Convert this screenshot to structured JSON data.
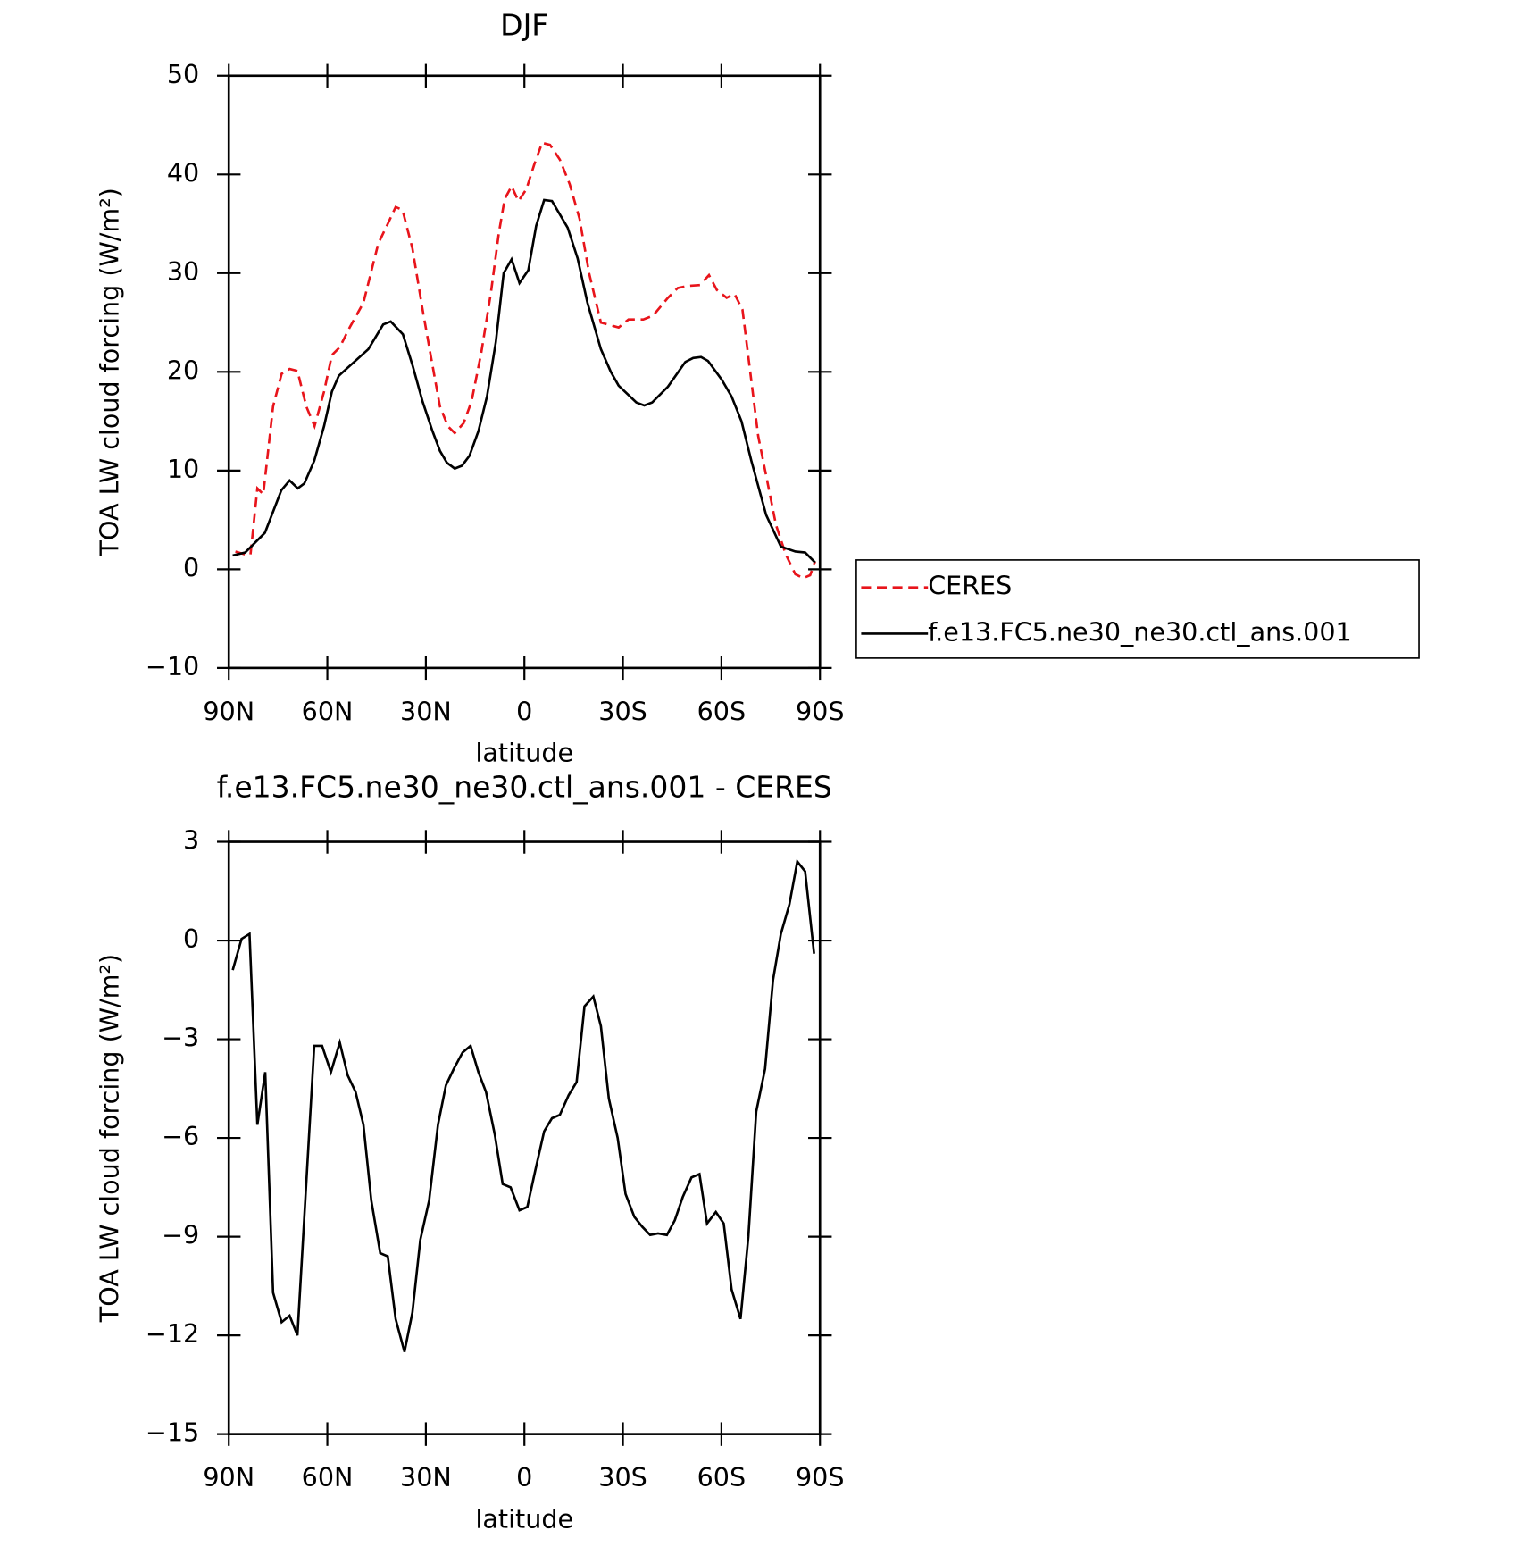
{
  "chart_data": [
    {
      "type": "line",
      "title": "DJF",
      "xlabel": "latitude",
      "ylabel": "TOA LW cloud forcing (W/m²)",
      "xlim": [
        90,
        -90
      ],
      "xticks": [
        {
          "value": 90,
          "label": "90N"
        },
        {
          "value": 60,
          "label": "60N"
        },
        {
          "value": 30,
          "label": "30N"
        },
        0,
        {
          "value": -30,
          "label": "30S"
        },
        {
          "value": -60,
          "label": "60S"
        },
        {
          "value": -90,
          "label": "90S"
        }
      ],
      "ylim": [
        -10,
        50
      ],
      "yticks": [
        -10,
        0,
        10,
        20,
        30,
        40,
        50
      ],
      "legend": "right",
      "series": [
        {
          "name": "CERES",
          "color": "#e8141b",
          "linestyle": "dashed",
          "x": [
            88,
            85,
            83.4,
            81.3,
            79.5,
            76.5,
            73.9,
            71.5,
            69.1,
            66.4,
            63.9,
            61,
            58.6,
            56.2,
            53.2,
            49,
            44.5,
            41.6,
            39.2,
            37.1,
            34.1,
            31.1,
            28.7,
            25.7,
            23.3,
            21.2,
            18.5,
            16.1,
            13.1,
            10.2,
            7.8,
            6,
            3.9,
            1.8,
            -0.6,
            -3,
            -5.4,
            -7.8,
            -10.8,
            -13.8,
            -16.8,
            -19.7,
            -23.3,
            -28.7,
            -31.7,
            -36.2,
            -39.2,
            -43.7,
            -46.7,
            -49.6,
            -53.5,
            -56.2,
            -58.6,
            -61.6,
            -64,
            -66.4,
            -68.2,
            -71.2,
            -74.2,
            -76.6,
            -79.6,
            -82.5,
            -84.9,
            -87,
            -88.5
          ],
          "values": [
            1.8,
            1.5,
            1.5,
            8.2,
            7.6,
            16.5,
            19.8,
            20.3,
            20.1,
            16.5,
            14.5,
            18,
            21.7,
            22.5,
            24.5,
            27,
            33,
            35,
            36.7,
            36.4,
            32.5,
            26.5,
            22,
            16.5,
            14.5,
            13.8,
            14.8,
            17,
            22,
            28,
            34,
            37.5,
            38.8,
            37.3,
            38.5,
            41,
            43.2,
            43,
            41.5,
            39,
            35.5,
            30,
            25,
            24.5,
            25.3,
            25.3,
            25.7,
            27.5,
            28.5,
            28.7,
            28.8,
            29.8,
            28.3,
            27.5,
            27.9,
            26.3,
            21.5,
            13.5,
            8.5,
            4.5,
            1.5,
            -0.5,
            -0.9,
            -0.6,
            0.8
          ]
        },
        {
          "name": "f.e13.FC5.ne30_ne30.ctl_ans.001",
          "color": "#000000",
          "linestyle": "solid",
          "x": [
            88.8,
            85,
            79,
            74,
            71.5,
            69,
            67,
            64,
            61,
            58.6,
            56.5,
            47.5,
            43,
            40.7,
            37,
            34,
            31,
            28,
            25.7,
            23.6,
            21.2,
            19,
            16.7,
            14,
            11.4,
            8.7,
            6.3,
            3.9,
            1.5,
            -1.2,
            -3.6,
            -6,
            -8.4,
            -13.2,
            -16.2,
            -19.2,
            -23.3,
            -26.3,
            -28.7,
            -34.1,
            -36.5,
            -38.9,
            -43.7,
            -49,
            -51.4,
            -53.8,
            -55.9,
            -60.1,
            -63.1,
            -66.1,
            -69.1,
            -73.6,
            -78.1,
            -82.5,
            -85.5,
            -88.5
          ],
          "values": [
            1.4,
            1.7,
            3.7,
            8,
            9,
            8.2,
            8.7,
            11,
            14.5,
            18,
            19.6,
            22.3,
            24.8,
            25.1,
            23.8,
            20.6,
            17,
            14,
            12,
            10.8,
            10.2,
            10.5,
            11.5,
            14,
            17.5,
            23,
            30,
            31.4,
            29,
            30.3,
            34.8,
            37.4,
            37.3,
            34.6,
            31.5,
            27,
            22.3,
            20,
            18.6,
            16.9,
            16.6,
            16.9,
            18.5,
            21,
            21.4,
            21.5,
            21.1,
            19.2,
            17.5,
            15,
            11,
            5.5,
            2.3,
            1.8,
            1.7,
            0.7
          ]
        }
      ]
    },
    {
      "type": "line",
      "title": "f.e13.FC5.ne30_ne30.ctl_ans.001 - CERES",
      "xlabel": "latitude",
      "ylabel": "TOA LW cloud forcing (W/m²)",
      "xlim": [
        90,
        -90
      ],
      "xticks": [
        {
          "value": 90,
          "label": "90N"
        },
        {
          "value": 60,
          "label": "60N"
        },
        {
          "value": 30,
          "label": "30N"
        },
        0,
        {
          "value": -30,
          "label": "30S"
        },
        {
          "value": -60,
          "label": "60S"
        },
        {
          "value": -90,
          "label": "90S"
        }
      ],
      "ylim": [
        -15,
        3
      ],
      "yticks": [
        -15,
        -12,
        -9,
        -6,
        -3,
        0,
        3
      ],
      "series": [
        {
          "color": "#000000",
          "linestyle": "solid",
          "x": [
            88.8,
            86.1,
            83.7,
            81.3,
            78.9,
            76.5,
            73.9,
            71.5,
            69.1,
            64,
            61.6,
            58.9,
            56.2,
            53.8,
            51.4,
            49,
            46.6,
            43.9,
            41.6,
            39.2,
            36.5,
            34.1,
            31.7,
            29,
            26.3,
            23.9,
            21.5,
            18.8,
            16.4,
            14,
            11.7,
            9,
            6.6,
            4.2,
            1.5,
            -0.9,
            -3.3,
            -6,
            -8.4,
            -10.8,
            -13.5,
            -15.9,
            -18.3,
            -21,
            -23.3,
            -25.7,
            -28.4,
            -30.8,
            -33.5,
            -35.9,
            -38.3,
            -40.7,
            -43.4,
            -45.8,
            -48.2,
            -50.9,
            -53.3,
            -55.6,
            -58.3,
            -60.7,
            -63.1,
            -65.8,
            -68.2,
            -70.6,
            -73.3,
            -75.7,
            -78.1,
            -80.7,
            -83.1,
            -85.5,
            -88.2
          ],
          "values": [
            -0.9,
            0.05,
            0.2,
            -5.6,
            -4,
            -10.7,
            -11.6,
            -11.4,
            -12,
            -3.2,
            -3.2,
            -4,
            -3.1,
            -4.1,
            -4.6,
            -5.6,
            -7.9,
            -9.5,
            -9.6,
            -11.5,
            -12.5,
            -11.3,
            -9.1,
            -7.9,
            -5.6,
            -4.4,
            -3.9,
            -3.4,
            -3.2,
            -4,
            -4.6,
            -5.9,
            -7.4,
            -7.5,
            -8.2,
            -8.1,
            -7,
            -5.8,
            -5.4,
            -5.3,
            -4.7,
            -4.3,
            -2,
            -1.7,
            -2.6,
            -4.8,
            -6,
            -7.7,
            -8.4,
            -8.7,
            -8.95,
            -8.9,
            -8.95,
            -8.5,
            -7.8,
            -7.2,
            -7.1,
            -8.6,
            -8.25,
            -8.6,
            -10.6,
            -11.5,
            -9,
            -5.2,
            -3.9,
            -1.2,
            0.2,
            1.1,
            2.4,
            2.1,
            -0.4
          ]
        }
      ]
    }
  ]
}
